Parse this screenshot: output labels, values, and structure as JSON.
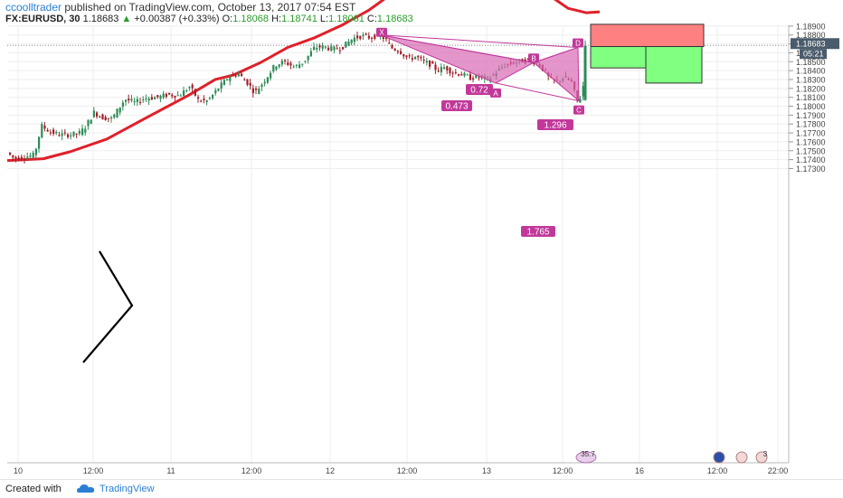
{
  "header": {
    "publisher": "ccoolltrader",
    "published_text": "published on TradingView.com, October 13, 2017 07:54 EST",
    "symbol": "FX:EURUSD, 30",
    "last": "1.18683",
    "change": "+0.00387 (+0.33%)",
    "o_label": "O:",
    "o_value": "1.18068",
    "h_label": "H:",
    "h_value": "1.18741",
    "l_label": "L:",
    "l_value": "1.18061",
    "c_label": "C:",
    "c_value": "1.18683"
  },
  "footer": {
    "created_with": "Created with",
    "brand": "TradingView"
  },
  "colors": {
    "up_candle": "#2e8b57",
    "down_candle": "#a0202a",
    "ma_line": "#e0202a",
    "pattern_fill": "#d86ab4",
    "pattern_label": "#c2389a",
    "stop_zone": "#ff8080",
    "target_zone": "#80ff80",
    "price_badge": "#4a5b6b"
  },
  "chart_data": {
    "type": "candlestick",
    "y_ticks": [
      "1.18900",
      "1.18800",
      "1.18700",
      "1.18600",
      "1.18500",
      "1.18400",
      "1.18300",
      "1.18200",
      "1.18100",
      "1.18000",
      "1.17900",
      "1.17800",
      "1.17700",
      "1.17600",
      "1.17500",
      "1.17400",
      "1.17300"
    ],
    "ylim": [
      1.1722,
      1.1899
    ],
    "x_ticks": [
      "10",
      "12:00",
      "11",
      "12:00",
      "12",
      "12:00",
      "13",
      "12:00",
      "16",
      "12:00",
      "22:00"
    ],
    "current_price_label": "1.18683",
    "countdown_label": "05:21",
    "ma_points": [
      [
        0,
        1.1739
      ],
      [
        40,
        1.1741
      ],
      [
        70,
        1.1749
      ],
      [
        110,
        1.1763
      ],
      [
        150,
        1.1785
      ],
      [
        200,
        1.1812
      ],
      [
        230,
        1.183
      ],
      [
        250,
        1.1835
      ],
      [
        280,
        1.1849
      ],
      [
        310,
        1.1866
      ],
      [
        340,
        1.1877
      ],
      [
        370,
        1.1891
      ],
      [
        400,
        1.1908
      ],
      [
        430,
        1.193
      ],
      [
        450,
        1.1941
      ],
      [
        470,
        1.1946
      ],
      [
        490,
        1.1947
      ],
      [
        510,
        1.1948
      ],
      [
        540,
        1.1938
      ],
      [
        560,
        1.1932
      ],
      [
        580,
        1.1928
      ],
      [
        600,
        1.1924
      ],
      [
        620,
        1.191
      ],
      [
        640,
        1.1905
      ],
      [
        655,
        1.1906
      ]
    ],
    "harmonic_pattern": {
      "points": [
        {
          "label": "X",
          "price": 1.188
        },
        {
          "label": "A",
          "price": 1.1826
        },
        {
          "label": "B",
          "price": 1.1849
        },
        {
          "label": "C",
          "price": 1.1806
        },
        {
          "label": "D",
          "price": 1.1866
        }
      ],
      "ratios": [
        "0.72",
        "0.473",
        "1.296",
        "1.765"
      ]
    },
    "trade_zones": {
      "stop": {
        "from": 1.1867,
        "to": 1.1892
      },
      "target1": {
        "from": 1.1843,
        "to": 1.1867
      },
      "target2": {
        "from": 1.1826,
        "to": 1.1867
      }
    },
    "bottom_markers": [
      "35.7",
      "3"
    ]
  }
}
